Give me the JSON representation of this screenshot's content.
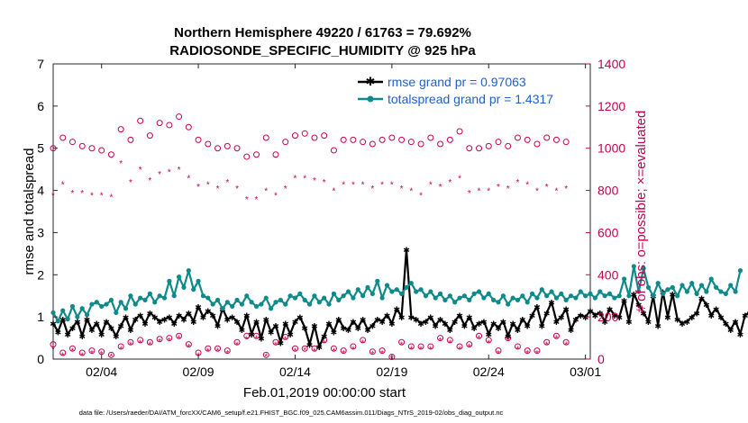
{
  "chart_data": {
    "type": "line",
    "title_line1": "Northern Hemisphere 49220 / 61763 = 79.692%",
    "title_line2": "RADIOSONDE_SPECIFIC_HUMIDITY @ 925 hPa",
    "xlabel": "Feb.01,2019 00:00:00 start",
    "ylabel_left": "rmse and totalspread",
    "ylabel_right": "# of obs: o=possible; ×=evaluated",
    "x_ticks": [
      "02/04",
      "02/09",
      "02/14",
      "02/19",
      "02/24",
      "03/01"
    ],
    "x_tick_days": [
      3,
      8,
      13,
      18,
      23,
      28
    ],
    "xlim": [
      0.5,
      28.25
    ],
    "ylim_left": [
      0,
      7
    ],
    "y_ticks_left": [
      "0",
      "1",
      "2",
      "3",
      "4",
      "5",
      "6",
      "7"
    ],
    "ylim_right": [
      0,
      1400
    ],
    "y_ticks_right": [
      "0",
      "200",
      "400",
      "600",
      "800",
      "1000",
      "1200",
      "1400"
    ],
    "x_start": 0.5,
    "x_step": 0.25,
    "legend": [
      "rmse grand pr = 0.97063",
      "totalspread grand pr = 1.4317"
    ],
    "series": [
      {
        "name": "rmse",
        "color": "#000000",
        "axis": "left",
        "values": [
          0.85,
          0.65,
          0.95,
          0.6,
          0.75,
          0.9,
          0.55,
          0.95,
          0.7,
          0.85,
          0.6,
          0.9,
          0.75,
          0.55,
          0.8,
          1.0,
          0.7,
          0.95,
          1.05,
          0.85,
          1.1,
          1.0,
          0.9,
          0.95,
          1.0,
          0.85,
          1.05,
          0.95,
          1.1,
          0.9,
          1.25,
          1.0,
          1.15,
          1.05,
          0.8,
          1.2,
          0.95,
          1.0,
          0.9,
          0.7,
          1.05,
          0.6,
          0.9,
          0.5,
          0.95,
          0.65,
          0.8,
          0.4,
          0.85,
          0.6,
          0.9,
          1.0,
          0.75,
          0.35,
          0.8,
          0.3,
          0.55,
          0.85,
          0.65,
          0.95,
          0.75,
          0.7,
          0.9,
          0.75,
          0.95,
          0.7,
          0.8,
          0.95,
          0.9,
          1.05,
          0.85,
          1.2,
          1.0,
          2.6,
          1.0,
          0.95,
          0.85,
          0.9,
          1.0,
          0.8,
          0.95,
          0.85,
          0.7,
          0.9,
          1.05,
          0.8,
          1.0,
          0.75,
          0.85,
          0.9,
          0.6,
          0.85,
          0.75,
          0.9,
          0.55,
          0.85,
          0.7,
          0.95,
          0.8,
          1.05,
          1.25,
          0.8,
          1.1,
          1.35,
          0.9,
          1.0,
          1.2,
          0.7,
          0.95,
          1.05,
          1.0,
          1.15,
          1.05,
          1.1,
          0.9,
          1.2,
          1.05,
          1.0,
          1.4,
          0.9,
          1.55,
          1.3,
          1.1,
          0.9,
          1.5,
          0.8,
          1.6,
          1.0,
          1.55,
          0.95,
          0.85,
          0.9,
          1.0,
          1.1,
          1.45,
          1.3,
          1.05,
          1.2,
          1.0,
          0.85,
          0.7,
          0.9,
          0.6,
          1.05,
          1.1
        ]
      },
      {
        "name": "totalspread",
        "color": "#0e8a8a",
        "axis": "left",
        "values": [
          1.1,
          0.9,
          1.15,
          0.95,
          1.25,
          1.0,
          1.2,
          1.05,
          1.3,
          1.35,
          1.25,
          1.3,
          1.4,
          1.1,
          1.35,
          1.2,
          1.5,
          1.3,
          1.45,
          1.4,
          1.55,
          1.35,
          1.5,
          1.45,
          1.85,
          1.5,
          1.95,
          1.7,
          2.1,
          1.65,
          1.85,
          1.5,
          1.45,
          1.3,
          1.4,
          1.2,
          1.35,
          1.25,
          1.4,
          1.3,
          1.5,
          1.35,
          1.25,
          1.3,
          1.45,
          1.2,
          1.35,
          1.4,
          1.3,
          1.5,
          1.45,
          1.55,
          1.4,
          1.3,
          1.5,
          1.35,
          1.45,
          1.3,
          1.55,
          1.4,
          1.5,
          1.6,
          1.45,
          1.65,
          1.5,
          1.7,
          1.55,
          1.85,
          1.45,
          1.75,
          1.6,
          1.65,
          1.55,
          1.7,
          1.8,
          1.6,
          1.65,
          1.5,
          1.6,
          1.45,
          1.55,
          1.4,
          1.5,
          1.35,
          1.45,
          1.5,
          1.4,
          1.55,
          1.6,
          1.45,
          1.55,
          1.4,
          1.35,
          1.5,
          1.3,
          1.45,
          1.4,
          1.5,
          1.35,
          1.55,
          1.45,
          1.65,
          1.5,
          1.6,
          1.45,
          1.55,
          1.4,
          1.5,
          1.45,
          1.6,
          1.5,
          1.55,
          1.45,
          1.6,
          1.5,
          1.55,
          1.45,
          1.5,
          1.9,
          1.5,
          2.2,
          1.6,
          2.15,
          1.7,
          1.5,
          1.8,
          1.55,
          1.65,
          1.7,
          1.5,
          1.75,
          1.6,
          1.8,
          1.55,
          1.75,
          1.6,
          1.9,
          1.7,
          1.6,
          1.55,
          1.75,
          1.6,
          2.1
        ]
      },
      {
        "name": "obs possible",
        "color": "#c8004f",
        "axis": "right",
        "values": [
          1000,
          1050,
          1030,
          1010,
          1000,
          990,
          970,
          1090,
          1040,
          1130,
          1060,
          1120,
          1110,
          1150,
          1100,
          1040,
          1020,
          1000,
          1010,
          1000,
          960,
          970,
          1050,
          970,
          1030,
          1060,
          1070,
          1050,
          1060,
          990,
          1040,
          1040,
          1030,
          1020,
          1040,
          1050,
          1040,
          1030,
          1020,
          1050,
          1020,
          1040,
          1080,
          1000,
          1000,
          1010,
          1030,
          1010,
          1050,
          1040,
          1020,
          1050,
          1040,
          1030
        ]
      },
      {
        "name": "obs evaluated",
        "color": "#c8004f",
        "axis": "right",
        "values": [
          780,
          830,
          790,
          790,
          780,
          780,
          770,
          930,
          840,
          900,
          850,
          880,
          890,
          900,
          860,
          820,
          830,
          810,
          840,
          810,
          760,
          760,
          800,
          780,
          810,
          860,
          860,
          850,
          840,
          800,
          830,
          830,
          830,
          810,
          830,
          830,
          810,
          800,
          780,
          830,
          820,
          840,
          860,
          790,
          800,
          800,
          820,
          810,
          840,
          830,
          800,
          820,
          800,
          810
        ]
      },
      {
        "name": "obs possible low",
        "color": "#c8004f",
        "axis": "right",
        "values": [
          70,
          30,
          50,
          30,
          40,
          35,
          20,
          60,
          80,
          90,
          80,
          95,
          100,
          110,
          70,
          30,
          50,
          50,
          40,
          80,
          110,
          110,
          20,
          80,
          105,
          50,
          50,
          50,
          90,
          50,
          40,
          60,
          90,
          35,
          40,
          10,
          80,
          60,
          60,
          60,
          100,
          90,
          60,
          70,
          110,
          90,
          40,
          100,
          60,
          40,
          40,
          80,
          110,
          80
        ]
      },
      {
        "name": "obs evaluated low",
        "color": "#c8004f",
        "axis": "right",
        "values": [
          50,
          20,
          40,
          20,
          30,
          25,
          15,
          50,
          70,
          80,
          70,
          85,
          90,
          100,
          60,
          20,
          40,
          40,
          30,
          70,
          95,
          100,
          15,
          70,
          95,
          40,
          45,
          40,
          80,
          40,
          30,
          50,
          80,
          25,
          30,
          5,
          70,
          50,
          50,
          50,
          90,
          80,
          50,
          60,
          100,
          80,
          30,
          90,
          50,
          30,
          30,
          70,
          100,
          70
        ]
      }
    ],
    "obs_x_start": 0.5,
    "obs_x_step": 0.5
  },
  "footer": "data file: /Users/raeder/DAI/ATM_forcXX/CAM6_setup/f.e21.FHIST_BGC.f09_025.CAM6assim.011/Diags_NTrS_2019-02/obs_diag_output.nc"
}
